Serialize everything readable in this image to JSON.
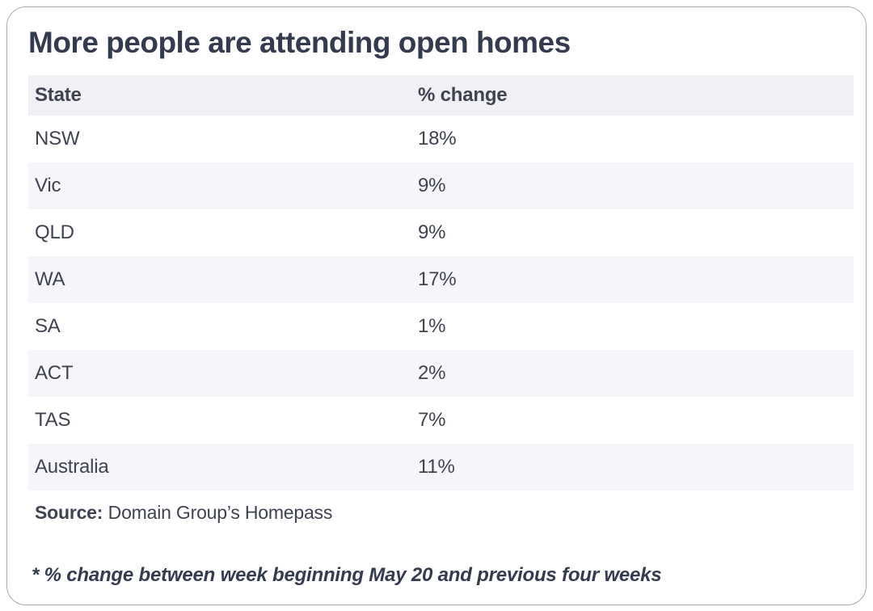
{
  "title": "More people are attending open homes",
  "table": {
    "headers": [
      "State",
      "% change"
    ],
    "rows": [
      {
        "state": "NSW",
        "change": "18%"
      },
      {
        "state": "Vic",
        "change": "9%"
      },
      {
        "state": "QLD",
        "change": "9%"
      },
      {
        "state": "WA",
        "change": "17%"
      },
      {
        "state": "SA",
        "change": "1%"
      },
      {
        "state": "ACT",
        "change": "2%"
      },
      {
        "state": "TAS",
        "change": "7%"
      },
      {
        "state": "Australia",
        "change": "11%"
      }
    ]
  },
  "source": {
    "label": "Source:",
    "text": "Domain Group’s Homepass"
  },
  "footnote": "* % change between week beginning May 20 and previous four weeks",
  "colors": {
    "card_background": "#ffffff",
    "card_border": "#aaaaae",
    "header_row_background": "#f1f1f5",
    "stripe_row_background": "#f6f6fa",
    "title_text": "#353b4e",
    "body_text": "#3f434f"
  },
  "chart_data": {
    "type": "table",
    "title": "More people are attending open homes",
    "columns": [
      "State",
      "% change"
    ],
    "categories": [
      "NSW",
      "Vic",
      "QLD",
      "WA",
      "SA",
      "ACT",
      "TAS",
      "Australia"
    ],
    "values": [
      18,
      9,
      9,
      17,
      1,
      2,
      7,
      11
    ],
    "unit": "%",
    "source": "Domain Group’s Homepass",
    "footnote": "* % change between week beginning May 20 and previous four weeks",
    "layout": "striped two-column table inside rounded white card"
  }
}
